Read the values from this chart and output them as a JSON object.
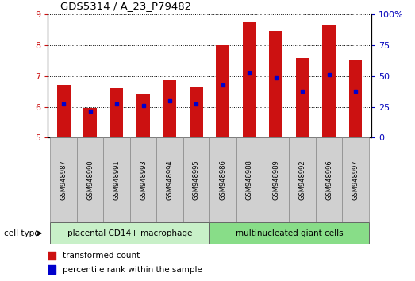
{
  "title": "GDS5314 / A_23_P79482",
  "samples": [
    "GSM948987",
    "GSM948990",
    "GSM948991",
    "GSM948993",
    "GSM948994",
    "GSM948995",
    "GSM948986",
    "GSM948988",
    "GSM948989",
    "GSM948992",
    "GSM948996",
    "GSM948997"
  ],
  "transformed_count": [
    6.7,
    5.95,
    6.6,
    6.4,
    6.85,
    6.65,
    8.0,
    8.73,
    8.45,
    7.58,
    8.65,
    7.52
  ],
  "percentile_rank": [
    6.1,
    5.87,
    6.1,
    6.05,
    6.2,
    6.08,
    6.7,
    7.1,
    6.95,
    6.5,
    7.05,
    6.5
  ],
  "ylim_left": [
    5,
    9
  ],
  "ylim_right": [
    0,
    100
  ],
  "yticks_left": [
    5,
    6,
    7,
    8,
    9
  ],
  "yticks_right": [
    0,
    25,
    50,
    75,
    100
  ],
  "groups": [
    {
      "label": "placental CD14+ macrophage",
      "start": 0,
      "end": 6,
      "color": "#c8f0c8"
    },
    {
      "label": "multinucleated giant cells",
      "start": 6,
      "end": 12,
      "color": "#88dd88"
    }
  ],
  "bar_color": "#cc1111",
  "blue_color": "#0000cc",
  "bar_bottom": 5.0,
  "sample_box_color": "#d0d0d0",
  "tick_color_left": "#cc1111",
  "tick_color_right": "#0000bb",
  "cell_type_label": "cell type",
  "legend_items": [
    {
      "label": "transformed count",
      "color": "#cc1111"
    },
    {
      "label": "percentile rank within the sample",
      "color": "#0000cc"
    }
  ],
  "background_color": "#ffffff"
}
